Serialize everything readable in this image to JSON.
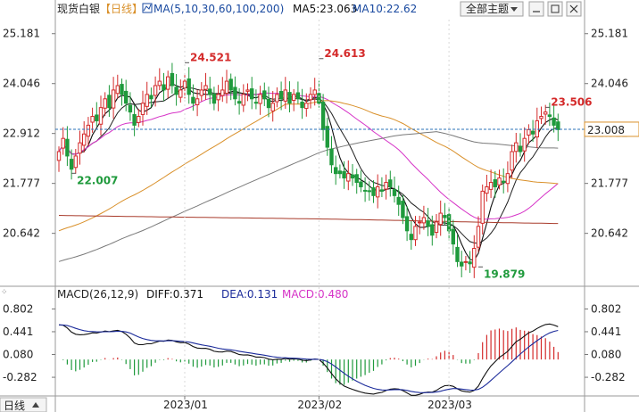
{
  "header": {
    "instrument": "现货白银",
    "period_tag": "【日线】",
    "ma_params": "MA(5,10,30,60,100,200)",
    "ma5_label": "MA5:23.063",
    "ma10_label": "MA10:22.62",
    "theme_button": "全部主题"
  },
  "macd_header": {
    "params": "MACD(26,12,9)",
    "diff_label": "DIFF:0.371",
    "dea_label": "DEA:0.131",
    "macd_label": "MACD:0.480"
  },
  "footer": {
    "period_tab": "日线"
  },
  "colors": {
    "up": "#d42a2a",
    "down": "#1f9a3c",
    "ma5": "#111111",
    "ma10": "#222222",
    "ma30": "#d633c7",
    "ma60": "#d9902a",
    "ma100": "#7a7a7a",
    "ma200": "#a83a2a",
    "diff": "#111111",
    "dea": "#1a2a9a",
    "dashed": "#2a70b8",
    "price_box": "#d9902a"
  },
  "chart_data": [
    {
      "type": "candlestick",
      "title": "现货白银",
      "y_axis_labels": [
        "25.181",
        "24.046",
        "22.912",
        "21.777",
        "20.642"
      ],
      "y_axis_values": [
        25.181,
        24.046,
        22.912,
        21.777,
        20.642
      ],
      "ylim": [
        19.5,
        25.5
      ],
      "x_axis_labels": [
        "2023/01",
        "2023/02",
        "2023/03"
      ],
      "last_price_label": "23.008",
      "last_price": 23.008,
      "annotations": [
        {
          "label": "24.521",
          "value": 24.521,
          "kind": "high",
          "at_bar": 30
        },
        {
          "label": "24.613",
          "value": 24.613,
          "kind": "high",
          "at_bar": 62
        },
        {
          "label": "22.007",
          "value": 22.007,
          "kind": "low",
          "at_bar": 3
        },
        {
          "label": "19.879",
          "value": 19.879,
          "kind": "low",
          "at_bar": 100
        },
        {
          "label": "23.506",
          "value": 23.506,
          "kind": "high",
          "at_bar": 116
        }
      ],
      "candles_close": [
        22.5,
        22.8,
        22.4,
        22.1,
        22.4,
        22.7,
        22.9,
        23.1,
        23.3,
        23.2,
        23.5,
        23.7,
        23.5,
        23.9,
        24.0,
        23.8,
        23.6,
        23.4,
        23.1,
        23.3,
        23.6,
        23.8,
        23.7,
        24.0,
        24.1,
        23.9,
        24.2,
        24.0,
        23.8,
        23.9,
        24.1,
        23.8,
        23.6,
        23.7,
        23.9,
        24.0,
        23.8,
        23.6,
        23.8,
        23.9,
        24.1,
        23.9,
        23.7,
        23.6,
        23.8,
        23.9,
        23.7,
        23.6,
        23.8,
        23.7,
        23.5,
        23.6,
        23.8,
        23.7,
        23.9,
        23.6,
        23.8,
        23.7,
        23.5,
        23.6,
        23.8,
        23.9,
        23.6,
        23.0,
        22.6,
        22.2,
        22.0,
        22.0,
        21.9,
        22.0,
        21.9,
        21.8,
        21.7,
        21.6,
        21.6,
        21.5,
        21.7,
        21.6,
        21.8,
        21.7,
        21.5,
        21.3,
        21.0,
        20.7,
        20.5,
        20.8,
        20.9,
        21.0,
        20.8,
        20.6,
        20.9,
        21.1,
        21.0,
        20.7,
        20.4,
        20.0,
        19.9,
        20.0,
        19.95,
        20.3,
        20.8,
        21.6,
        21.7,
        21.8,
        21.7,
        21.9,
        21.8,
        22.0,
        22.5,
        22.7,
        22.5,
        22.8,
        23.0,
        22.9,
        23.2,
        23.3,
        23.4,
        23.3,
        23.1,
        23.0
      ],
      "series": [
        {
          "name": "MA5",
          "values": [
            23.06
          ]
        },
        {
          "name": "MA10",
          "values": [
            22.62
          ]
        }
      ]
    },
    {
      "type": "bar",
      "title": "MACD(26,12,9)",
      "y_axis_labels": [
        "0.802",
        "0.441",
        "0.080",
        "-0.282"
      ],
      "y_axis_values": [
        0.802,
        0.441,
        0.08,
        -0.282
      ],
      "ylim": [
        -0.55,
        0.95
      ],
      "series": [
        {
          "name": "DIFF",
          "last": 0.371
        },
        {
          "name": "DEA",
          "last": 0.131
        },
        {
          "name": "MACD",
          "last": 0.48
        }
      ]
    }
  ]
}
